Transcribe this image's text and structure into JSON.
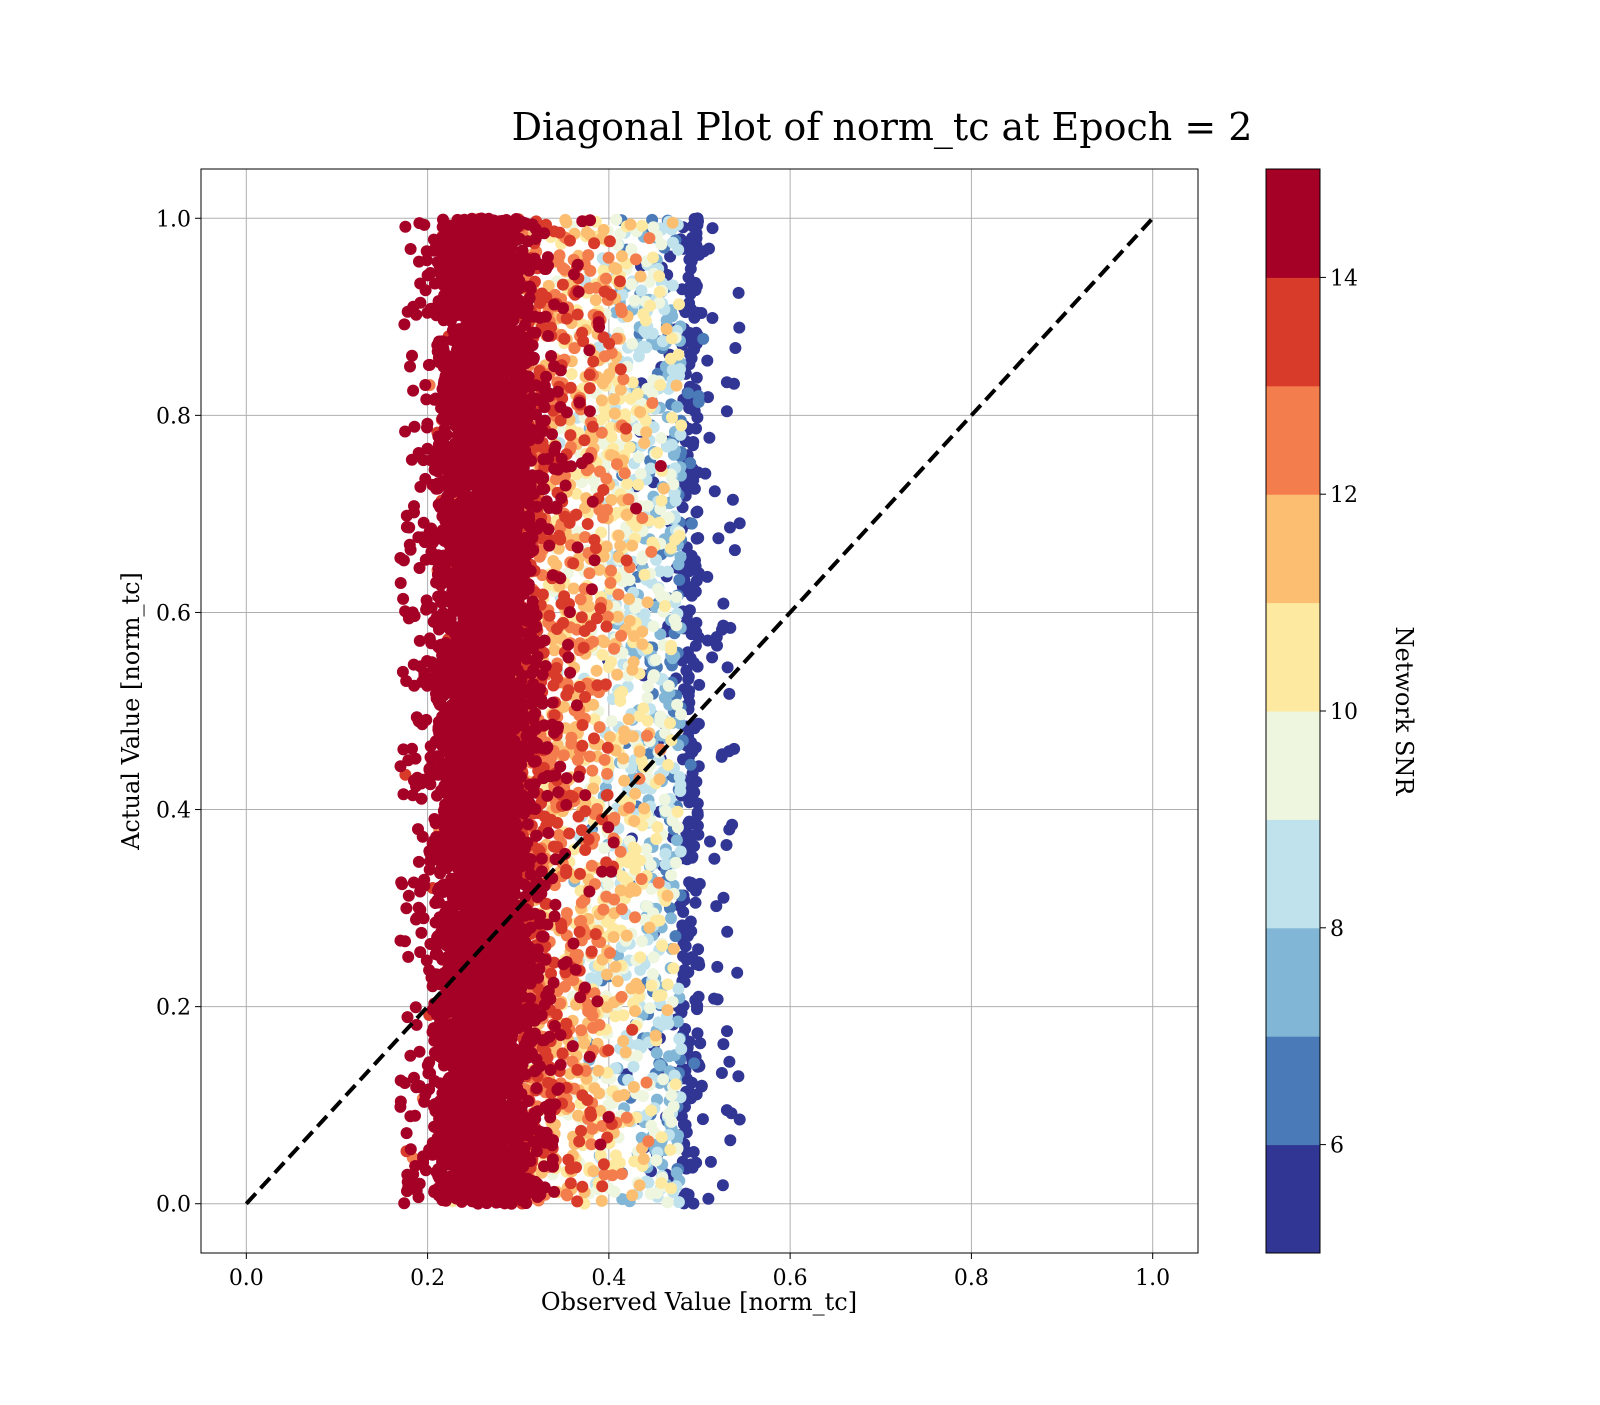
{
  "chart_data": {
    "type": "scatter",
    "title": "Diagonal Plot of norm_tc at Epoch = 2",
    "xlabel": "Observed Value [norm_tc]",
    "ylabel": "Actual Value [norm_tc]",
    "xlim": [
      -0.05,
      1.05
    ],
    "ylim": [
      -0.05,
      1.05
    ],
    "xticks": [
      0.0,
      0.2,
      0.4,
      0.6,
      0.8,
      1.0
    ],
    "yticks": [
      0.0,
      0.2,
      0.4,
      0.6,
      0.8,
      1.0
    ],
    "xtick_labels": [
      "0.0",
      "0.2",
      "0.4",
      "0.6",
      "0.8",
      "1.0"
    ],
    "ytick_labels": [
      "0.0",
      "0.2",
      "0.4",
      "0.6",
      "0.8",
      "1.0"
    ],
    "grid": true,
    "reference_line": {
      "x": [
        0.0,
        1.0
      ],
      "y": [
        0.0,
        1.0
      ],
      "style": "dashed",
      "color": "#000000"
    },
    "point_clusters": [
      {
        "x_range": [
          0.17,
          0.55
        ],
        "y_range": [
          0.0,
          1.0
        ],
        "note": "points spread across observed 0.2–0.5"
      }
    ],
    "colorbar": {
      "label": "Network SNR",
      "range": [
        5,
        15
      ],
      "ticks": [
        6,
        8,
        10,
        12,
        14
      ],
      "tick_labels": [
        "6",
        "8",
        "10",
        "12",
        "14"
      ],
      "bins": [
        {
          "from": 5,
          "to": 6,
          "color": "#313695"
        },
        {
          "from": 6,
          "to": 7,
          "color": "#4a7ab7"
        },
        {
          "from": 7,
          "to": 8,
          "color": "#82b6d6"
        },
        {
          "from": 8,
          "to": 9,
          "color": "#bfe2ec"
        },
        {
          "from": 9,
          "to": 10,
          "color": "#eef6e0"
        },
        {
          "from": 10,
          "to": 11,
          "color": "#fee9a0"
        },
        {
          "from": 11,
          "to": 12,
          "color": "#fcbf72"
        },
        {
          "from": 12,
          "to": 13,
          "color": "#f47d4d"
        },
        {
          "from": 13,
          "to": 14,
          "color": "#d93b2b"
        },
        {
          "from": 14,
          "to": 15,
          "color": "#a50026"
        }
      ]
    }
  }
}
